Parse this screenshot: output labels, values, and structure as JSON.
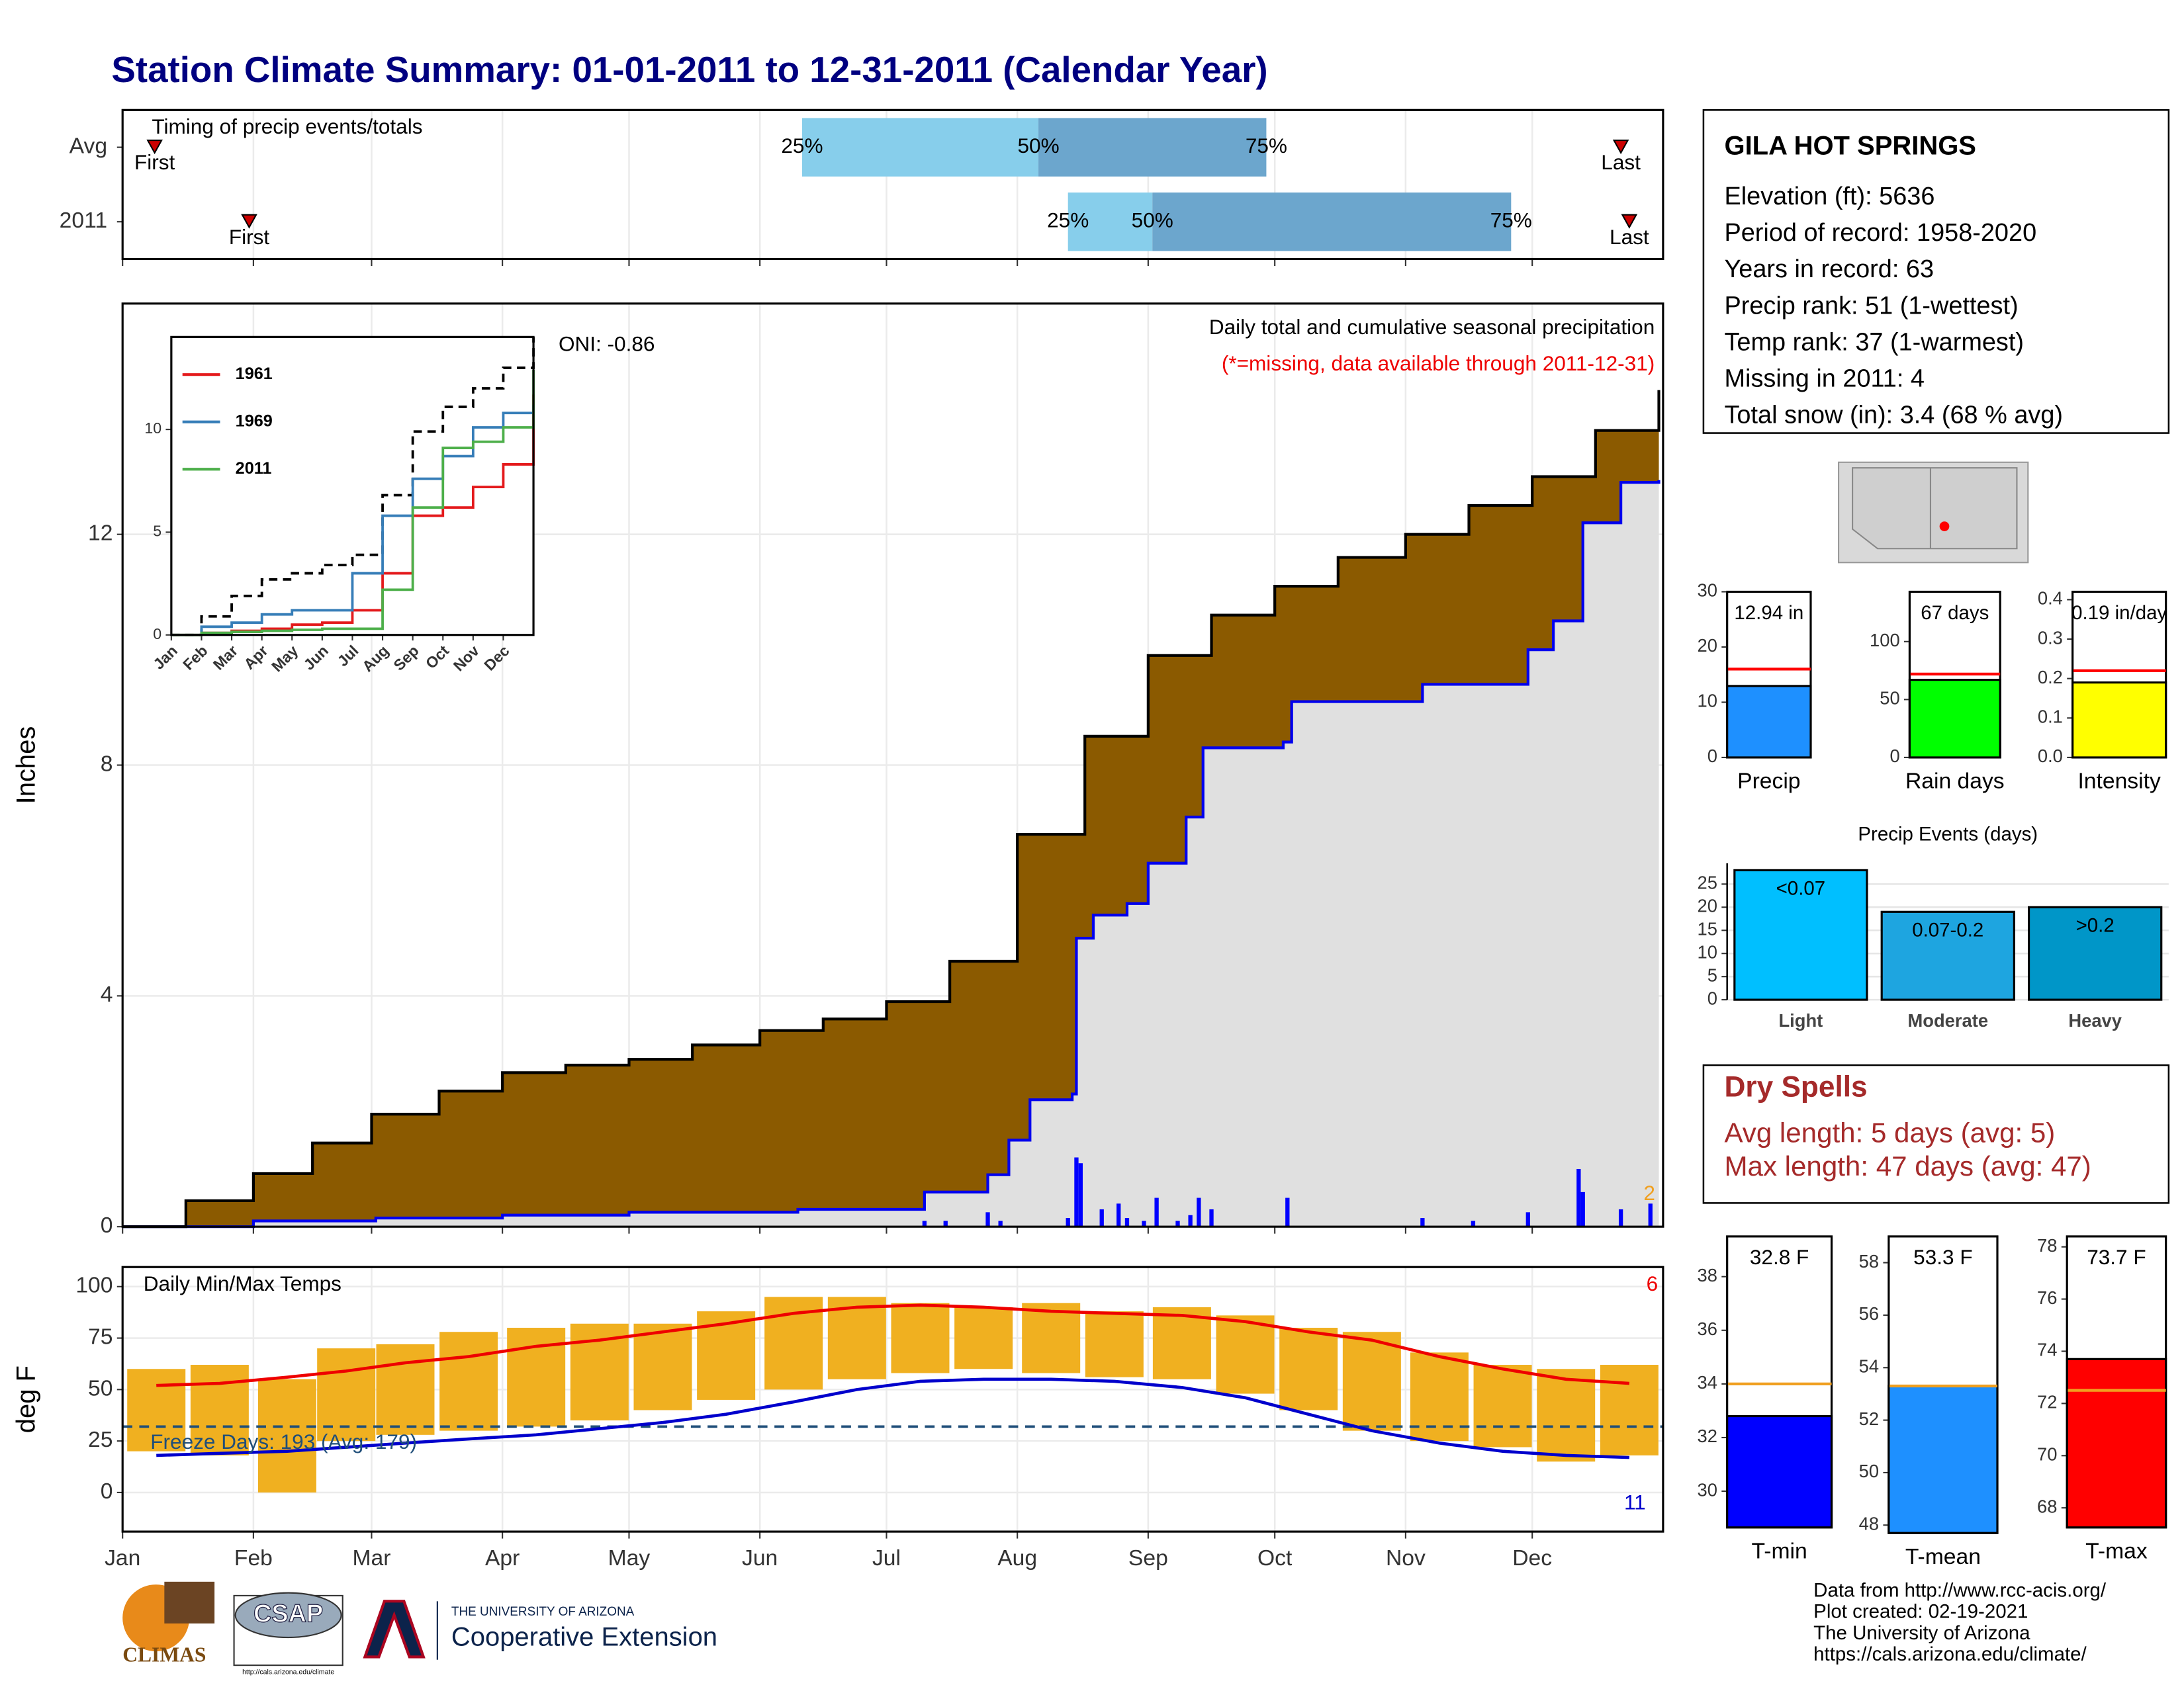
{
  "title": "Station Climate Summary: 01-01-2011 to 12-31-2011 (Calendar Year)",
  "chart_data": [
    {
      "type": "timing",
      "title": "Timing of precip events/totals",
      "categories": [
        "Avg",
        "2011"
      ],
      "xlim": [
        0,
        365
      ],
      "xticks": [
        0,
        31,
        59,
        90,
        120,
        151,
        181,
        212,
        243,
        273,
        304,
        334
      ],
      "labels": {
        "first": "First",
        "last": "Last",
        "p25": "25%",
        "p50": "50%",
        "p75": "75%"
      },
      "rows": [
        {
          "first": 7.6,
          "p25": 161,
          "p50": 217,
          "p75": 271,
          "last": 355
        },
        {
          "first": 30,
          "p25": 224,
          "p50": 244,
          "p75": 329,
          "last": 357
        }
      ],
      "colors": {
        "light": "#87ceeb",
        "dark": "#6ca6cd",
        "marker": "#cc0000"
      }
    },
    {
      "type": "cumulative",
      "title": "Daily total and cumulative seasonal precipitation",
      "subtitle": "(*=missing, data available through 2011-12-31)",
      "annotation": "ONI: -0.86",
      "corner_label": "2",
      "y_label": "Inches",
      "xlim": [
        0,
        365
      ],
      "ylim": [
        0,
        16
      ],
      "yticks": [
        0,
        4,
        8,
        12
      ],
      "xticks": [
        0,
        31,
        59,
        90,
        120,
        151,
        181,
        212,
        243,
        273,
        304,
        334
      ],
      "grid": true,
      "normal": {
        "color": "#000000",
        "fill": "#8b5a00",
        "x": [
          0,
          15,
          31,
          45,
          59,
          75,
          90,
          105,
          120,
          135,
          151,
          166,
          181,
          196,
          212,
          228,
          243,
          258,
          273,
          288,
          304,
          319,
          334,
          349,
          364
        ],
        "values": [
          0,
          0.45,
          0.92,
          1.45,
          1.95,
          2.35,
          2.67,
          2.8,
          2.9,
          3.15,
          3.4,
          3.6,
          3.9,
          4.6,
          6.8,
          8.5,
          9.9,
          10.6,
          11.1,
          11.6,
          12.0,
          12.5,
          13.0,
          13.8,
          14.5
        ]
      },
      "observed": {
        "color": "#0000ee",
        "fill": "#e0e0e0",
        "x": [
          0,
          31,
          60,
          90,
          120,
          160,
          188,
          190,
          205,
          210,
          215,
          225,
          226,
          230,
          238,
          243,
          252,
          256,
          275,
          277,
          308,
          333,
          339,
          346,
          355,
          364
        ],
        "values": [
          0,
          0.1,
          0.15,
          0.2,
          0.25,
          0.3,
          0.3,
          0.6,
          0.9,
          1.5,
          2.2,
          2.3,
          5.0,
          5.4,
          5.6,
          6.3,
          7.1,
          8.3,
          8.4,
          9.1,
          9.4,
          10.0,
          10.5,
          12.2,
          12.9,
          12.94
        ]
      },
      "daily": {
        "color": "#0000ff",
        "x": [
          190,
          195,
          205,
          208,
          224,
          226,
          227,
          232,
          236,
          238,
          242,
          245,
          250,
          253,
          255,
          258,
          276,
          308,
          320,
          333,
          345,
          346,
          355,
          362
        ],
        "values": [
          0.1,
          0.1,
          0.25,
          0.1,
          0.15,
          1.2,
          1.1,
          0.3,
          0.4,
          0.15,
          0.1,
          0.5,
          0.1,
          0.2,
          0.5,
          0.3,
          0.5,
          0.15,
          0.1,
          0.25,
          1.0,
          0.6,
          0.3,
          0.4
        ]
      }
    },
    {
      "type": "line",
      "xlim": [
        0,
        12
      ],
      "ylim": [
        0,
        14.5
      ],
      "yticks": [
        0,
        5,
        10
      ],
      "xticks": [
        {
          "value": 0,
          "label": "Jan"
        },
        {
          "value": 1,
          "label": "Feb"
        },
        {
          "value": 2,
          "label": "Mar"
        },
        {
          "value": 3,
          "label": "Apr"
        },
        {
          "value": 4,
          "label": "May"
        },
        {
          "value": 5,
          "label": "Jun"
        },
        {
          "value": 6,
          "label": "Jul"
        },
        {
          "value": 7,
          "label": "Aug"
        },
        {
          "value": 8,
          "label": "Sep"
        },
        {
          "value": 9,
          "label": "Oct"
        },
        {
          "value": 10,
          "label": "Nov"
        },
        {
          "value": 11,
          "label": "Dec"
        }
      ],
      "x": [
        0,
        1,
        2,
        3,
        4,
        5,
        6,
        7,
        8,
        9,
        10,
        11,
        12
      ],
      "series": [
        {
          "color": "#000000",
          "dash": true,
          "values": [
            0,
            0.9,
            1.9,
            2.7,
            3.0,
            3.4,
            3.9,
            6.8,
            9.9,
            11.1,
            12.0,
            13.0,
            14.5
          ]
        },
        {
          "name": "1961",
          "color": "#e41a1c",
          "values": [
            0,
            0.1,
            0.2,
            0.3,
            0.5,
            0.6,
            1.2,
            3.0,
            5.8,
            6.2,
            7.2,
            8.3,
            11.7
          ]
        },
        {
          "name": "1969",
          "color": "#377eb8",
          "values": [
            0,
            0.4,
            0.6,
            1.0,
            1.2,
            1.2,
            3.0,
            5.8,
            7.6,
            8.7,
            10.1,
            10.8,
            11.2
          ]
        },
        {
          "name": "2011",
          "color": "#4daf4a",
          "values": [
            0,
            0.1,
            0.15,
            0.2,
            0.25,
            0.3,
            0.3,
            2.2,
            6.2,
            9.1,
            9.4,
            10.1,
            12.9
          ]
        }
      ]
    },
    {
      "type": "temp",
      "title": "Daily Min/Max Temps",
      "y_label": "deg F",
      "freeze": 32,
      "freeze_label": "Freeze Days: 193 (Avg: 179)",
      "max_label": "6",
      "min_label": "11",
      "xlim": [
        0,
        365
      ],
      "ylim": [
        -19,
        109.5
      ],
      "yticks": [
        0,
        25,
        50,
        75,
        100
      ],
      "grid": true,
      "xticks": [
        {
          "value": 0,
          "label": "Jan"
        },
        {
          "value": 31,
          "label": "Feb"
        },
        {
          "value": 59,
          "label": "Mar"
        },
        {
          "value": 90,
          "label": "Apr"
        },
        {
          "value": 120,
          "label": "May"
        },
        {
          "value": 151,
          "label": "Jun"
        },
        {
          "value": 181,
          "label": "Jul"
        },
        {
          "value": 212,
          "label": "Aug"
        },
        {
          "value": 243,
          "label": "Sep"
        },
        {
          "value": 273,
          "label": "Oct"
        },
        {
          "value": 304,
          "label": "Nov"
        },
        {
          "value": 334,
          "label": "Dec"
        }
      ],
      "x": [
        8,
        23,
        39,
        53,
        67,
        82,
        98,
        113,
        128,
        143,
        159,
        174,
        189,
        204,
        220,
        235,
        251,
        266,
        281,
        296,
        312,
        327,
        342,
        357
      ],
      "obs_min": [
        20,
        18,
        0,
        25,
        28,
        30,
        32,
        35,
        40,
        45,
        50,
        55,
        58,
        60,
        58,
        56,
        55,
        48,
        40,
        30,
        25,
        22,
        15,
        18
      ],
      "obs_max": [
        60,
        62,
        55,
        70,
        72,
        78,
        80,
        82,
        82,
        88,
        95,
        95,
        92,
        90,
        92,
        88,
        90,
        86,
        80,
        78,
        68,
        62,
        60,
        62
      ],
      "normal_max": [
        52,
        53,
        56,
        59,
        63,
        66,
        71,
        74,
        78,
        82,
        87,
        90,
        91,
        90,
        88,
        87,
        86,
        83,
        78,
        74,
        66,
        60,
        55,
        53
      ],
      "normal_min": [
        18,
        19,
        20,
        22,
        24,
        26,
        28,
        31,
        34,
        38,
        44,
        50,
        54,
        55,
        55,
        54,
        51,
        46,
        38,
        30,
        24,
        20,
        18,
        17
      ],
      "colors": {
        "bars": "#f0b020",
        "max": "#ee0000",
        "min": "#0000cc",
        "freeze": "#1f4e79"
      }
    },
    {
      "type": "bar",
      "categories": [
        "Precip"
      ],
      "values": [
        12.94
      ],
      "value_labels": [
        "12.94 in"
      ],
      "avg": 16,
      "avg_color": "#ff0000",
      "color": "#1e90ff",
      "ylim": [
        0,
        30
      ],
      "yticks": [
        0,
        10,
        20,
        30
      ]
    },
    {
      "type": "bar",
      "categories": [
        "Rain days"
      ],
      "values": [
        67
      ],
      "value_labels": [
        "67 days"
      ],
      "avg": 72,
      "avg_color": "#ff0000",
      "color": "#00ff00",
      "ylim": [
        0,
        143
      ],
      "yticks": [
        0,
        50,
        100
      ]
    },
    {
      "type": "bar",
      "categories": [
        "Intensity"
      ],
      "values": [
        0.19
      ],
      "value_labels": [
        "0.19 in/day"
      ],
      "avg": 0.22,
      "avg_color": "#ff0000",
      "color": "#ffff00",
      "ylim": [
        0,
        0.42
      ],
      "yticks": [
        {
          "value": 0,
          "label": "0.0"
        },
        {
          "value": 0.1,
          "label": "0.1"
        },
        {
          "value": 0.2,
          "label": "0.2"
        },
        {
          "value": 0.3,
          "label": "0.3"
        },
        {
          "value": 0.4,
          "label": "0.4"
        }
      ]
    },
    {
      "type": "bar",
      "title": "Precip Events (days)",
      "categories": [
        "Light",
        "Moderate",
        "Heavy"
      ],
      "values": [
        28,
        19,
        20
      ],
      "value_labels": [
        "<0.07",
        "0.07-0.2",
        ">0.2"
      ],
      "colors": [
        "#00bfff",
        "#1ea5e0",
        "#0096c8"
      ],
      "ylim": [
        0,
        29.5
      ],
      "yticks": [
        0,
        5,
        10,
        15,
        20,
        25
      ],
      "grid": true
    },
    {
      "type": "bar",
      "categories": [
        "T-min"
      ],
      "values": [
        32.8
      ],
      "value_labels": [
        "32.8 F"
      ],
      "avg": 34,
      "avg_color": "#f0a020",
      "color": "#0000ff",
      "ylim": [
        28.65,
        39.5
      ],
      "yticks": [
        30,
        32,
        34,
        36,
        38
      ]
    },
    {
      "type": "bar",
      "categories": [
        "T-mean"
      ],
      "values": [
        53.3
      ],
      "value_labels": [
        "53.3 F"
      ],
      "avg": 53.3,
      "avg_color": "#f0a020",
      "color": "#1e90ff",
      "ylim": [
        47.7,
        59
      ],
      "yticks": [
        48,
        50,
        52,
        54,
        56,
        58
      ]
    },
    {
      "type": "bar",
      "categories": [
        "T-max"
      ],
      "values": [
        73.7
      ],
      "value_labels": [
        "73.7 F"
      ],
      "avg": 72.5,
      "avg_color": "#f0a020",
      "color": "#ff0000",
      "ylim": [
        67.25,
        78.4
      ],
      "yticks": [
        68,
        70,
        72,
        74,
        76,
        78
      ]
    }
  ],
  "station": {
    "name": "GILA HOT SPRINGS",
    "lines": [
      "Elevation (ft): 5636",
      "Period of record: 1958-2020",
      "Years in record: 63",
      "Precip rank: 51 (1-wettest)",
      "Temp rank: 37 (1-warmest)",
      "Missing in 2011: 4",
      "Total snow (in): 3.4 (68 % avg)"
    ]
  },
  "dry_spells": {
    "title": "Dry Spells",
    "lines": [
      "Avg length: 5 days (avg: 5)",
      "Max length: 47 days (avg: 47)"
    ]
  },
  "footer": [
    "Data from http://www.rcc-acis.org/",
    "Plot created: 02-19-2021",
    "The University of Arizona",
    "https://cals.arizona.edu/climate/"
  ],
  "logos": {
    "climas": "CLIMAS",
    "csap": "CSAP",
    "csap_url": "http://cals.arizona.edu/climate",
    "ua_small": "THE UNIVERSITY OF ARIZONA",
    "ua_big": "Cooperative Extension"
  }
}
